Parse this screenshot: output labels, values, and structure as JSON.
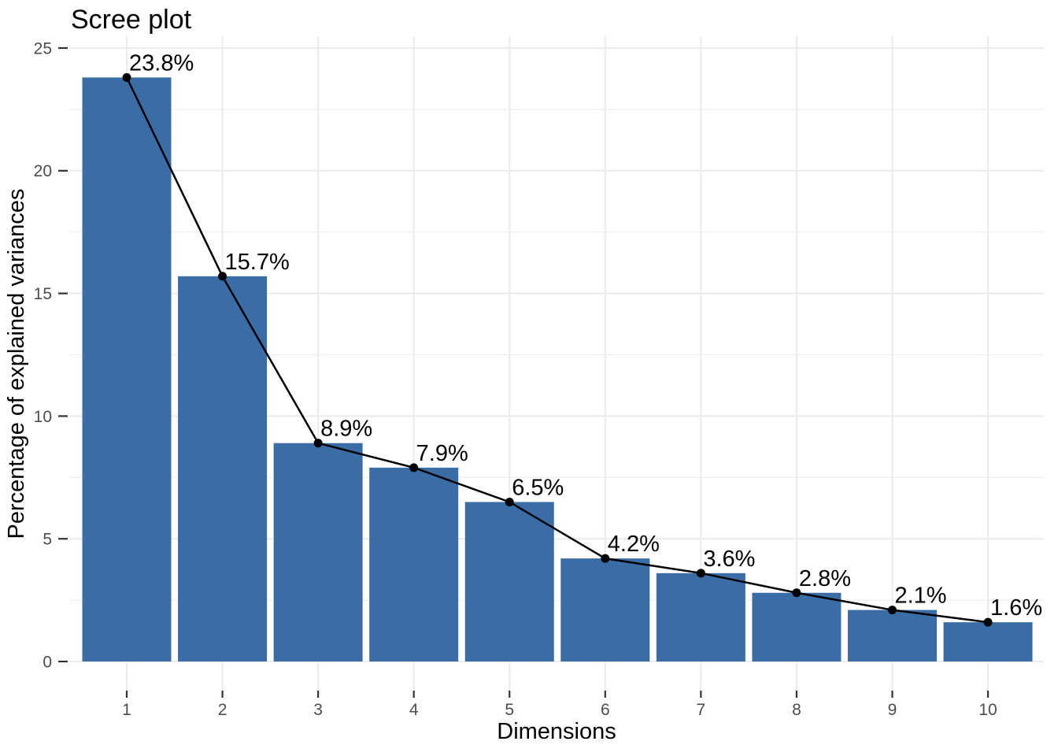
{
  "chart_data": {
    "type": "bar",
    "overlay": "line-with-points",
    "title": "Scree plot",
    "xlabel": "Dimensions",
    "ylabel": "Percentage of explained variances",
    "categories": [
      "1",
      "2",
      "3",
      "4",
      "5",
      "6",
      "7",
      "8",
      "9",
      "10"
    ],
    "values": [
      23.8,
      15.7,
      8.9,
      7.9,
      6.5,
      4.2,
      3.6,
      2.8,
      2.1,
      1.6
    ],
    "point_labels": [
      "23.8%",
      "15.7%",
      "8.9%",
      "7.9%",
      "6.5%",
      "4.2%",
      "3.6%",
      "2.8%",
      "2.1%",
      "1.6%"
    ],
    "ylim": [
      0,
      25
    ],
    "yticks": [
      0,
      5,
      10,
      15,
      20,
      25
    ],
    "yticks_minor": [
      2.5,
      7.5,
      12.5,
      17.5,
      22.5
    ],
    "grid": "major+minor",
    "legend": "none",
    "colors": {
      "bar": "#3A6DA6",
      "line": "#000000",
      "point": "#000000",
      "label_text": "#000000",
      "title_text": "#000000",
      "axis_title_text": "#000000",
      "grid_major": "#EBEBEB",
      "grid_minor": "#EDEDED",
      "tick_text": "#4D4D4D",
      "tick_mark": "#333333",
      "background": "#FFFFFF"
    }
  }
}
